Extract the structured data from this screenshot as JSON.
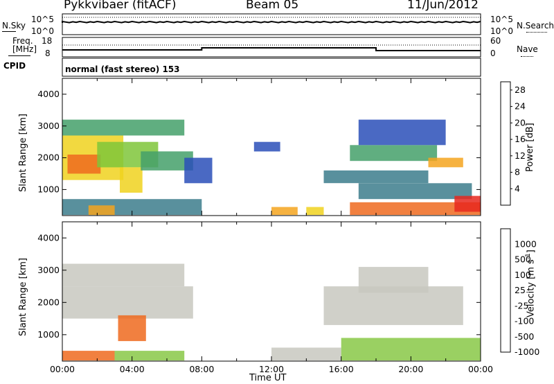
{
  "header": {
    "radar": "Pykkvibaer (fitACF)",
    "beam": "Beam 05",
    "date": "11/Jun/2012"
  },
  "small_panels": {
    "nsky_label": "N.Sky",
    "nsky_ticks": [
      "10^5",
      "10^0"
    ],
    "nsearch_label": "N.Search",
    "nsearch_ticks": [
      "10^5",
      "10^0"
    ],
    "freq_label_1": "Freq.",
    "freq_label_2": "[MHz]",
    "freq_ticks": [
      "18",
      "8"
    ],
    "nave_label": "Nave",
    "nave_ticks": [
      "60",
      "0"
    ],
    "cpid_label": "CPID",
    "cpid_value": "normal (fast stereo) 153"
  },
  "chart_data": [
    {
      "type": "heatmap",
      "name": "power",
      "ylabel": "Slant Range [km]",
      "ylim": [
        180,
        4500
      ],
      "yticks": [
        1000,
        2000,
        3000,
        4000
      ],
      "xlim": [
        0,
        24
      ],
      "colorbar_label": "Power [dB]",
      "colorbar_ticks": [
        4,
        8,
        12,
        16,
        20,
        24,
        28
      ],
      "colorbar_range": [
        0,
        30
      ],
      "colors": [
        "#0a1ee6",
        "#2a4fb8",
        "#3c7d8c",
        "#44a06a",
        "#7fc63a",
        "#f0d21e",
        "#f5a51e",
        "#ee6a1e",
        "#e8281e"
      ],
      "regions": [
        {
          "t0": 0.0,
          "t1": 7.0,
          "r0": 2700,
          "r1": 3200,
          "power": 12
        },
        {
          "t0": 0.0,
          "t1": 3.5,
          "r0": 1300,
          "r1": 2700,
          "power": 17
        },
        {
          "t0": 0.3,
          "t1": 2.2,
          "r0": 1500,
          "r1": 2100,
          "power": 24
        },
        {
          "t0": 2.0,
          "t1": 5.5,
          "r0": 1700,
          "r1": 2500,
          "power": 14
        },
        {
          "t0": 3.3,
          "t1": 4.6,
          "r0": 900,
          "r1": 1700,
          "power": 19
        },
        {
          "t0": 4.5,
          "t1": 7.5,
          "r0": 1600,
          "r1": 2200,
          "power": 10
        },
        {
          "t0": 7.0,
          "t1": 8.6,
          "r0": 1200,
          "r1": 2000,
          "power": 6
        },
        {
          "t0": 0.0,
          "t1": 8.0,
          "r0": 200,
          "r1": 700,
          "power": 9
        },
        {
          "t0": 1.5,
          "t1": 3.0,
          "r0": 200,
          "r1": 500,
          "power": 20
        },
        {
          "t0": 11.0,
          "t1": 12.5,
          "r0": 2200,
          "r1": 2500,
          "power": 6
        },
        {
          "t0": 12.0,
          "t1": 13.5,
          "r0": 200,
          "r1": 450,
          "power": 22
        },
        {
          "t0": 14.0,
          "t1": 15.0,
          "r0": 200,
          "r1": 450,
          "power": 18
        },
        {
          "t0": 15.0,
          "t1": 21.0,
          "r0": 1200,
          "r1": 1600,
          "power": 8
        },
        {
          "t0": 16.5,
          "t1": 21.5,
          "r0": 1900,
          "r1": 2400,
          "power": 12
        },
        {
          "t0": 17.0,
          "t1": 22.0,
          "r0": 2400,
          "r1": 3200,
          "power": 6
        },
        {
          "t0": 17.0,
          "t1": 23.5,
          "r0": 700,
          "r1": 1200,
          "power": 9
        },
        {
          "t0": 16.5,
          "t1": 24.0,
          "r0": 200,
          "r1": 600,
          "power": 24
        },
        {
          "t0": 21.0,
          "t1": 23.0,
          "r0": 1700,
          "r1": 2000,
          "power": 20
        },
        {
          "t0": 22.5,
          "t1": 24.0,
          "r0": 300,
          "r1": 800,
          "power": 28
        }
      ]
    },
    {
      "type": "heatmap",
      "name": "velocity",
      "ylabel": "Slant Range [km]",
      "ylim": [
        180,
        4500
      ],
      "yticks": [
        1000,
        2000,
        3000,
        4000
      ],
      "xlim": [
        0,
        24
      ],
      "xticks": [
        "00:00",
        "04:00",
        "08:00",
        "12:00",
        "16:00",
        "20:00",
        "00:00"
      ],
      "xlabel": "Time UT",
      "colorbar_label": "Velocity [m s",
      "colorbar_label_sup": "-1",
      "colorbar_label_end": "]",
      "colorbar_ticks": [
        "1000",
        "500",
        "100",
        "25",
        "-25",
        "-100",
        "-500",
        "-1000"
      ],
      "colors": [
        "#2244cc",
        "#3a6e8c",
        "#55a055",
        "#88c846",
        "#c8c8c0",
        "#e88a26",
        "#ee6a1e",
        "#e02a1e"
      ],
      "regions": [
        {
          "t0": 0.0,
          "t1": 7.0,
          "r0": 2500,
          "r1": 3200,
          "v": 0
        },
        {
          "t0": 0.0,
          "t1": 7.5,
          "r0": 1500,
          "r1": 2500,
          "v": 0
        },
        {
          "t0": 3.2,
          "t1": 4.8,
          "r0": 800,
          "r1": 1600,
          "v": -300
        },
        {
          "t0": 0.0,
          "t1": 3.0,
          "r0": 200,
          "r1": 500,
          "v": -200
        },
        {
          "t0": 3.0,
          "t1": 7.0,
          "r0": 200,
          "r1": 500,
          "v": 50
        },
        {
          "t0": 12.0,
          "t1": 16.0,
          "r0": 200,
          "r1": 600,
          "v": 0
        },
        {
          "t0": 15.0,
          "t1": 23.0,
          "r0": 1300,
          "r1": 2500,
          "v": 0
        },
        {
          "t0": 16.0,
          "t1": 24.0,
          "r0": 200,
          "r1": 900,
          "v": 60
        },
        {
          "t0": 17.0,
          "t1": 21.0,
          "r0": 2300,
          "r1": 3100,
          "v": 0
        }
      ]
    }
  ]
}
